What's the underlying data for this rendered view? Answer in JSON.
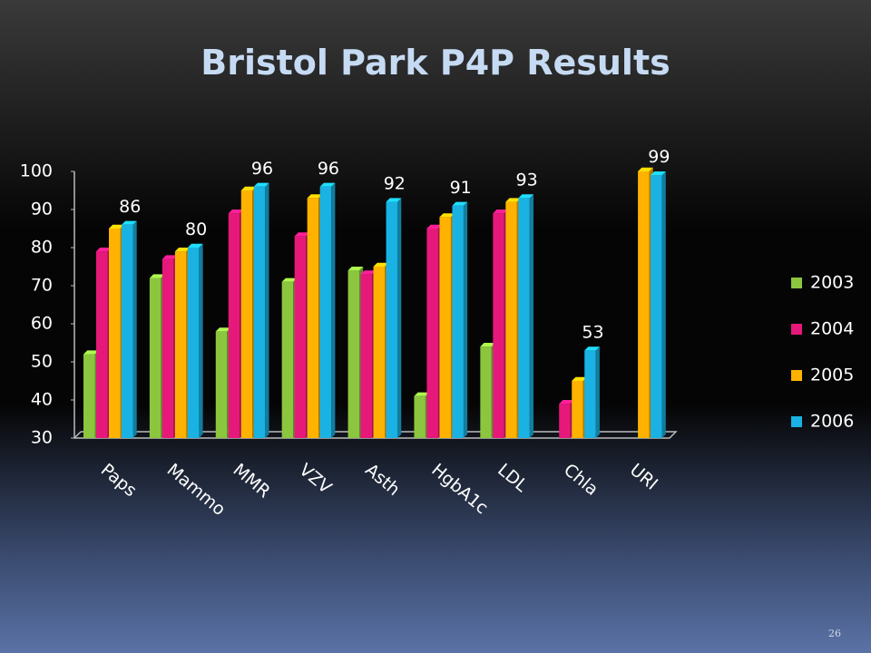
{
  "slide_number": "26",
  "chart_data": {
    "type": "bar",
    "title": "Bristol Park P4P Results",
    "categories": [
      "Paps",
      "Mammo",
      "MMR",
      "VZV",
      "Asth",
      "HgbA1c",
      "LDL",
      "Chla",
      "URI"
    ],
    "series": [
      {
        "name": "2003",
        "color": "#8cc63f",
        "values": [
          52,
          72,
          58,
          71,
          74,
          41,
          54,
          null,
          null
        ]
      },
      {
        "name": "2004",
        "color": "#e6197b",
        "values": [
          79,
          77,
          89,
          83,
          73,
          85,
          89,
          39,
          null
        ]
      },
      {
        "name": "2005",
        "color": "#ffb300",
        "values": [
          85,
          79,
          95,
          93,
          75,
          88,
          92,
          45,
          100
        ]
      },
      {
        "name": "2006",
        "color": "#19b2e3",
        "values": [
          86,
          80,
          96,
          96,
          92,
          91,
          93,
          53,
          99
        ],
        "data_labels": true
      }
    ],
    "ylim": [
      30,
      100
    ],
    "yticks": [
      30,
      40,
      50,
      60,
      70,
      80,
      90,
      100
    ],
    "legend": "right"
  }
}
